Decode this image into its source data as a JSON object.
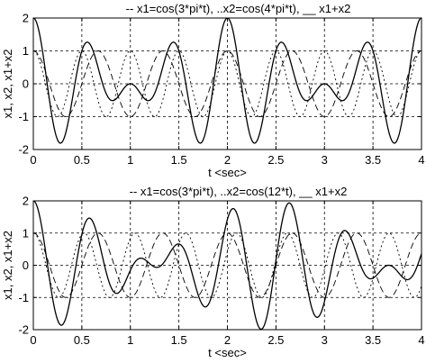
{
  "chart_data": [
    {
      "type": "line",
      "title": "-- x1=cos(3*pi*t), ..x2=cos(4*pi*t), __ x1+x2",
      "xlabel": "t <sec>",
      "ylabel": "x1, x2, x1+x2",
      "xlim": [
        0,
        4
      ],
      "ylim": [
        -2,
        2
      ],
      "xticks": [
        "0",
        "0.5",
        "1",
        "1.5",
        "2",
        "2.5",
        "3",
        "3.5",
        "4"
      ],
      "yticks": [
        "-2",
        "-1",
        "0",
        "1",
        "2"
      ],
      "grid": true,
      "t_range": [
        0,
        4
      ],
      "series": [
        {
          "formula": "cos(3*pi*t)",
          "omega": 9.42478,
          "style": "dashed"
        },
        {
          "formula": "cos(4*pi*t)",
          "omega": 12.56637,
          "style": "dotted"
        },
        {
          "formula": "cos(3*pi*t)+cos(4*pi*t)",
          "style": "solid"
        }
      ]
    },
    {
      "type": "line",
      "title": "-- x1=cos(3*pi*t), ..x2=cos(12*t), __ x1+x2",
      "xlabel": "t <sec>",
      "ylabel": "x1, x2, x1+x2",
      "xlim": [
        0,
        4
      ],
      "ylim": [
        -2,
        2
      ],
      "xticks": [
        "0",
        "0.5",
        "1",
        "1.5",
        "2",
        "2.5",
        "3",
        "3.5",
        "4"
      ],
      "yticks": [
        "-2",
        "-1",
        "0",
        "1",
        "2"
      ],
      "grid": true,
      "t_range": [
        0,
        4
      ],
      "series": [
        {
          "formula": "cos(3*pi*t)",
          "omega": 9.42478,
          "style": "dashed"
        },
        {
          "formula": "cos(12*t)",
          "omega": 12.0,
          "style": "dotted"
        },
        {
          "formula": "cos(3*pi*t)+cos(12*t)",
          "style": "solid"
        }
      ]
    }
  ]
}
